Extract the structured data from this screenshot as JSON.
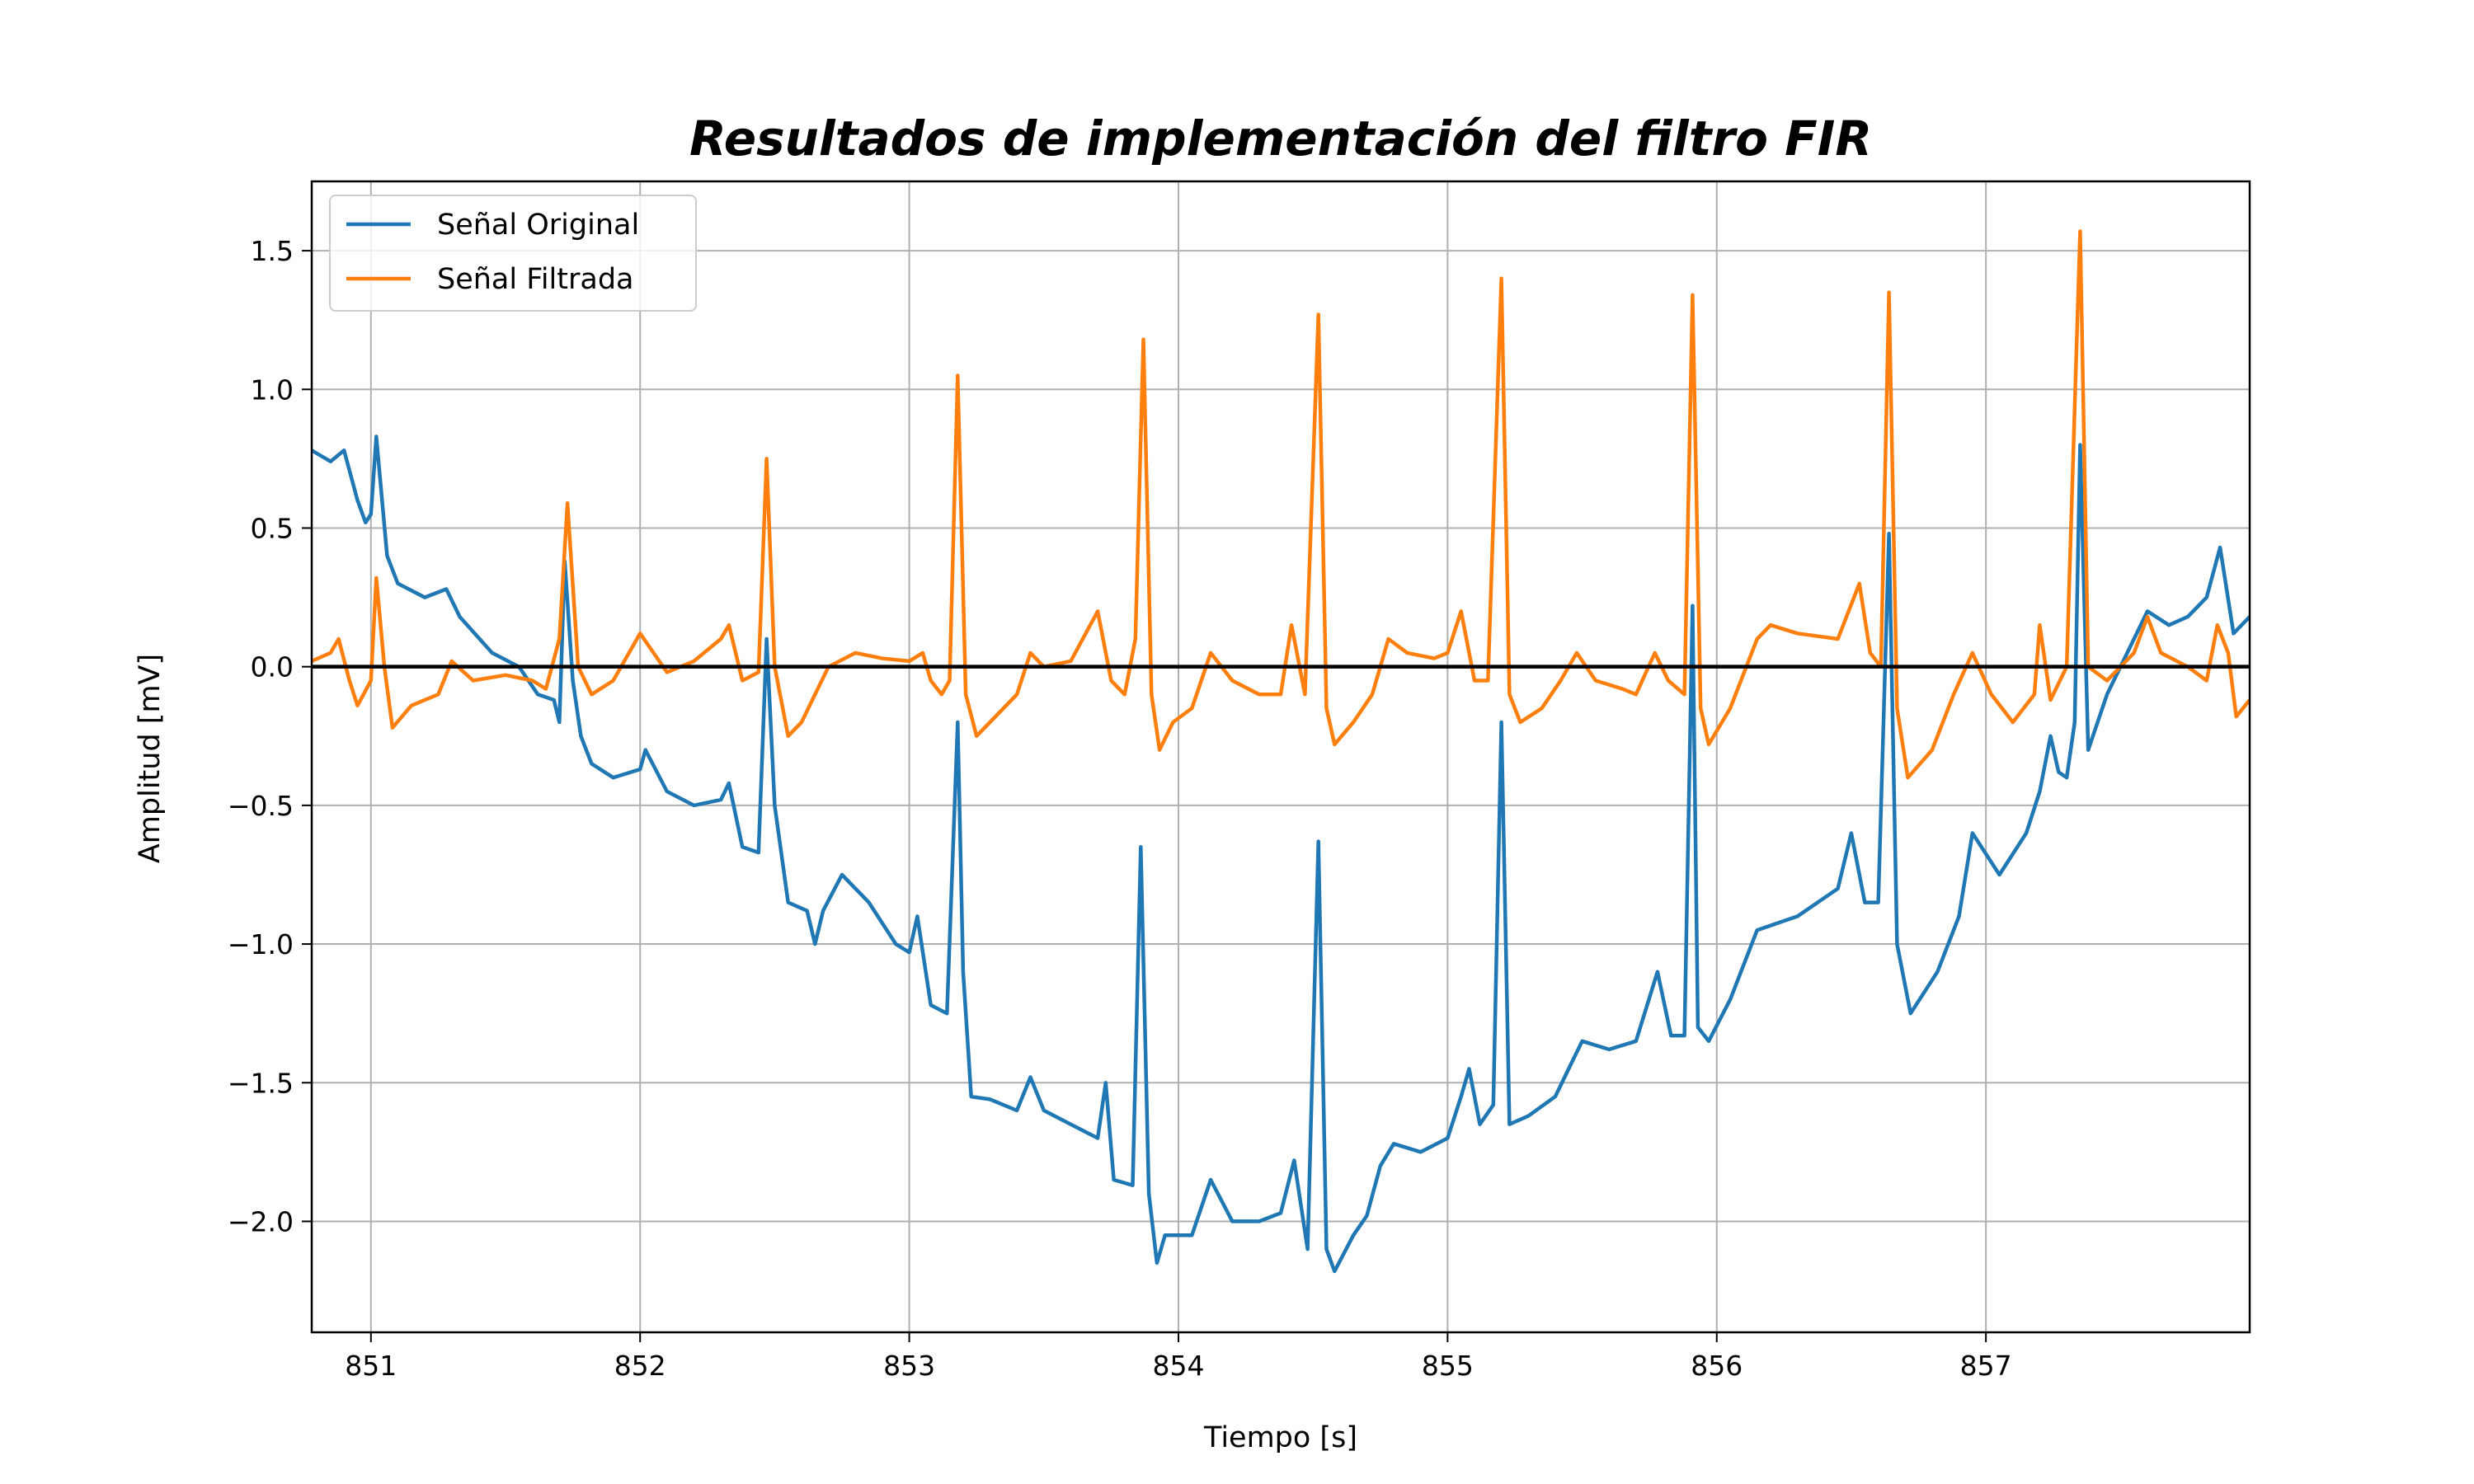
{
  "chart_data": {
    "type": "line",
    "title": "Resultados de implementación del filtro FIR",
    "xlabel": "Tiempo [s]",
    "ylabel": "Amplitud [mV]",
    "xlim": [
      850.78,
      857.98
    ],
    "ylim": [
      -2.4,
      1.75
    ],
    "xticks": [
      851,
      852,
      853,
      854,
      855,
      856,
      857
    ],
    "xtick_labels": [
      "851",
      "852",
      "853",
      "854",
      "855",
      "856",
      "857"
    ],
    "yticks": [
      1.5,
      1.0,
      0.5,
      0.0,
      -0.5,
      -1.0,
      -1.5,
      -2.0
    ],
    "ytick_labels": [
      "1.5",
      "1.0",
      "0.5",
      "0.0",
      "−0.5",
      "−1.0",
      "−1.5",
      "−2.0"
    ],
    "grid": true,
    "legend_position": "top-left",
    "zero_line": true,
    "colors": {
      "original": "#1f77b4",
      "filtered": "#ff7f0e",
      "zero": "#000000",
      "grid": "#b0b0b0"
    },
    "series": [
      {
        "name": "Señal Original",
        "points": [
          [
            850.78,
            0.78
          ],
          [
            850.85,
            0.74
          ],
          [
            850.9,
            0.78
          ],
          [
            850.95,
            0.6
          ],
          [
            850.98,
            0.52
          ],
          [
            851.0,
            0.55
          ],
          [
            851.02,
            0.83
          ],
          [
            851.06,
            0.4
          ],
          [
            851.1,
            0.3
          ],
          [
            851.2,
            0.25
          ],
          [
            851.28,
            0.28
          ],
          [
            851.33,
            0.18
          ],
          [
            851.45,
            0.05
          ],
          [
            851.55,
            0.0
          ],
          [
            851.62,
            -0.1
          ],
          [
            851.68,
            -0.12
          ],
          [
            851.7,
            -0.2
          ],
          [
            851.72,
            0.38
          ],
          [
            851.75,
            -0.05
          ],
          [
            851.78,
            -0.25
          ],
          [
            851.82,
            -0.35
          ],
          [
            851.9,
            -0.4
          ],
          [
            852.0,
            -0.37
          ],
          [
            852.02,
            -0.3
          ],
          [
            852.1,
            -0.45
          ],
          [
            852.2,
            -0.5
          ],
          [
            852.3,
            -0.48
          ],
          [
            852.33,
            -0.42
          ],
          [
            852.38,
            -0.65
          ],
          [
            852.44,
            -0.67
          ],
          [
            852.47,
            0.1
          ],
          [
            852.5,
            -0.5
          ],
          [
            852.55,
            -0.85
          ],
          [
            852.62,
            -0.88
          ],
          [
            852.65,
            -1.0
          ],
          [
            852.68,
            -0.88
          ],
          [
            852.75,
            -0.75
          ],
          [
            852.85,
            -0.85
          ],
          [
            852.95,
            -1.0
          ],
          [
            853.0,
            -1.03
          ],
          [
            853.03,
            -0.9
          ],
          [
            853.08,
            -1.22
          ],
          [
            853.14,
            -1.25
          ],
          [
            853.18,
            -0.2
          ],
          [
            853.2,
            -1.1
          ],
          [
            853.23,
            -1.55
          ],
          [
            853.3,
            -1.56
          ],
          [
            853.4,
            -1.6
          ],
          [
            853.45,
            -1.48
          ],
          [
            853.5,
            -1.6
          ],
          [
            853.6,
            -1.65
          ],
          [
            853.7,
            -1.7
          ],
          [
            853.73,
            -1.5
          ],
          [
            853.76,
            -1.85
          ],
          [
            853.83,
            -1.87
          ],
          [
            853.86,
            -0.65
          ],
          [
            853.89,
            -1.9
          ],
          [
            853.92,
            -2.15
          ],
          [
            853.95,
            -2.05
          ],
          [
            854.05,
            -2.05
          ],
          [
            854.12,
            -1.85
          ],
          [
            854.2,
            -2.0
          ],
          [
            854.3,
            -2.0
          ],
          [
            854.38,
            -1.97
          ],
          [
            854.43,
            -1.78
          ],
          [
            854.48,
            -2.1
          ],
          [
            854.52,
            -0.63
          ],
          [
            854.55,
            -2.1
          ],
          [
            854.58,
            -2.18
          ],
          [
            854.65,
            -2.05
          ],
          [
            854.7,
            -1.98
          ],
          [
            854.75,
            -1.8
          ],
          [
            854.8,
            -1.72
          ],
          [
            854.9,
            -1.75
          ],
          [
            855.0,
            -1.7
          ],
          [
            855.05,
            -1.55
          ],
          [
            855.08,
            -1.45
          ],
          [
            855.12,
            -1.65
          ],
          [
            855.17,
            -1.58
          ],
          [
            855.2,
            -0.2
          ],
          [
            855.23,
            -1.65
          ],
          [
            855.3,
            -1.62
          ],
          [
            855.4,
            -1.55
          ],
          [
            855.45,
            -1.45
          ],
          [
            855.5,
            -1.35
          ],
          [
            855.6,
            -1.38
          ],
          [
            855.7,
            -1.35
          ],
          [
            855.78,
            -1.1
          ],
          [
            855.83,
            -1.33
          ],
          [
            855.88,
            -1.33
          ],
          [
            855.91,
            0.22
          ],
          [
            855.93,
            -1.3
          ],
          [
            855.97,
            -1.35
          ],
          [
            856.05,
            -1.2
          ],
          [
            856.15,
            -0.95
          ],
          [
            856.3,
            -0.9
          ],
          [
            856.45,
            -0.8
          ],
          [
            856.5,
            -0.6
          ],
          [
            856.55,
            -0.85
          ],
          [
            856.6,
            -0.85
          ],
          [
            856.64,
            0.48
          ],
          [
            856.67,
            -1.0
          ],
          [
            856.72,
            -1.25
          ],
          [
            856.82,
            -1.1
          ],
          [
            856.9,
            -0.9
          ],
          [
            856.95,
            -0.6
          ],
          [
            857.05,
            -0.75
          ],
          [
            857.15,
            -0.6
          ],
          [
            857.2,
            -0.45
          ],
          [
            857.24,
            -0.25
          ],
          [
            857.27,
            -0.38
          ],
          [
            857.3,
            -0.4
          ],
          [
            857.33,
            -0.2
          ],
          [
            857.35,
            0.8
          ],
          [
            857.38,
            -0.3
          ],
          [
            857.45,
            -0.1
          ],
          [
            857.55,
            0.1
          ],
          [
            857.6,
            0.2
          ],
          [
            857.68,
            0.15
          ],
          [
            857.75,
            0.18
          ],
          [
            857.82,
            0.25
          ],
          [
            857.87,
            0.43
          ],
          [
            857.92,
            0.12
          ],
          [
            857.98,
            0.18
          ]
        ]
      },
      {
        "name": "Señal Filtrada",
        "points": [
          [
            850.78,
            0.02
          ],
          [
            850.85,
            0.05
          ],
          [
            850.88,
            0.1
          ],
          [
            850.92,
            -0.05
          ],
          [
            850.95,
            -0.14
          ],
          [
            851.0,
            -0.05
          ],
          [
            851.02,
            0.32
          ],
          [
            851.05,
            0.0
          ],
          [
            851.08,
            -0.22
          ],
          [
            851.15,
            -0.14
          ],
          [
            851.25,
            -0.1
          ],
          [
            851.3,
            0.02
          ],
          [
            851.38,
            -0.05
          ],
          [
            851.5,
            -0.03
          ],
          [
            851.6,
            -0.05
          ],
          [
            851.65,
            -0.08
          ],
          [
            851.7,
            0.1
          ],
          [
            851.73,
            0.59
          ],
          [
            851.77,
            0.0
          ],
          [
            851.82,
            -0.1
          ],
          [
            851.9,
            -0.05
          ],
          [
            852.0,
            0.12
          ],
          [
            852.05,
            0.05
          ],
          [
            852.1,
            -0.02
          ],
          [
            852.2,
            0.02
          ],
          [
            852.3,
            0.1
          ],
          [
            852.33,
            0.15
          ],
          [
            852.38,
            -0.05
          ],
          [
            852.44,
            -0.02
          ],
          [
            852.47,
            0.75
          ],
          [
            852.5,
            0.0
          ],
          [
            852.55,
            -0.25
          ],
          [
            852.6,
            -0.2
          ],
          [
            852.65,
            -0.1
          ],
          [
            852.7,
            0.0
          ],
          [
            852.8,
            0.05
          ],
          [
            852.9,
            0.03
          ],
          [
            853.0,
            0.02
          ],
          [
            853.05,
            0.05
          ],
          [
            853.08,
            -0.05
          ],
          [
            853.12,
            -0.1
          ],
          [
            853.15,
            -0.05
          ],
          [
            853.18,
            1.05
          ],
          [
            853.21,
            -0.1
          ],
          [
            853.25,
            -0.25
          ],
          [
            853.3,
            -0.2
          ],
          [
            853.4,
            -0.1
          ],
          [
            853.45,
            0.05
          ],
          [
            853.5,
            0.0
          ],
          [
            853.6,
            0.02
          ],
          [
            853.7,
            0.2
          ],
          [
            853.75,
            -0.05
          ],
          [
            853.8,
            -0.1
          ],
          [
            853.84,
            0.1
          ],
          [
            853.87,
            1.18
          ],
          [
            853.9,
            -0.1
          ],
          [
            853.93,
            -0.3
          ],
          [
            853.98,
            -0.2
          ],
          [
            854.05,
            -0.15
          ],
          [
            854.12,
            0.05
          ],
          [
            854.2,
            -0.05
          ],
          [
            854.3,
            -0.1
          ],
          [
            854.38,
            -0.1
          ],
          [
            854.42,
            0.15
          ],
          [
            854.47,
            -0.1
          ],
          [
            854.52,
            1.27
          ],
          [
            854.55,
            -0.15
          ],
          [
            854.58,
            -0.28
          ],
          [
            854.65,
            -0.2
          ],
          [
            854.72,
            -0.1
          ],
          [
            854.78,
            0.1
          ],
          [
            854.85,
            0.05
          ],
          [
            854.95,
            0.03
          ],
          [
            855.0,
            0.05
          ],
          [
            855.05,
            0.2
          ],
          [
            855.1,
            -0.05
          ],
          [
            855.15,
            -0.05
          ],
          [
            855.2,
            1.4
          ],
          [
            855.23,
            -0.1
          ],
          [
            855.27,
            -0.2
          ],
          [
            855.35,
            -0.15
          ],
          [
            855.42,
            -0.05
          ],
          [
            855.48,
            0.05
          ],
          [
            855.55,
            -0.05
          ],
          [
            855.65,
            -0.08
          ],
          [
            855.7,
            -0.1
          ],
          [
            855.77,
            0.05
          ],
          [
            855.82,
            -0.05
          ],
          [
            855.88,
            -0.1
          ],
          [
            855.91,
            1.34
          ],
          [
            855.94,
            -0.15
          ],
          [
            855.97,
            -0.28
          ],
          [
            856.05,
            -0.15
          ],
          [
            856.15,
            0.1
          ],
          [
            856.2,
            0.15
          ],
          [
            856.3,
            0.12
          ],
          [
            856.45,
            0.1
          ],
          [
            856.53,
            0.3
          ],
          [
            856.57,
            0.05
          ],
          [
            856.61,
            0.0
          ],
          [
            856.64,
            1.35
          ],
          [
            856.67,
            -0.15
          ],
          [
            856.71,
            -0.4
          ],
          [
            856.8,
            -0.3
          ],
          [
            856.88,
            -0.1
          ],
          [
            856.95,
            0.05
          ],
          [
            857.02,
            -0.1
          ],
          [
            857.1,
            -0.2
          ],
          [
            857.18,
            -0.1
          ],
          [
            857.2,
            0.15
          ],
          [
            857.24,
            -0.12
          ],
          [
            857.3,
            0.0
          ],
          [
            857.35,
            1.57
          ],
          [
            857.38,
            0.0
          ],
          [
            857.45,
            -0.05
          ],
          [
            857.55,
            0.05
          ],
          [
            857.6,
            0.18
          ],
          [
            857.65,
            0.05
          ],
          [
            857.75,
            0.0
          ],
          [
            857.82,
            -0.05
          ],
          [
            857.86,
            0.15
          ],
          [
            857.9,
            0.05
          ],
          [
            857.93,
            -0.18
          ],
          [
            857.98,
            -0.12
          ]
        ]
      }
    ]
  }
}
